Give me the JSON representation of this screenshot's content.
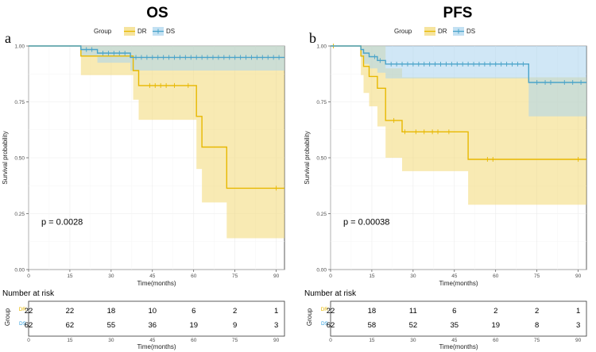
{
  "colors": {
    "dr": "#e7b800",
    "ds": "#2e9fdf",
    "ds_line": "#4aa3c9",
    "dr_band": "#f2d875",
    "ds_band": "#a9d4ee",
    "grid": "#ebebeb"
  },
  "chart_data": [
    {
      "type": "line",
      "subtype": "kaplan-meier",
      "title": "OS",
      "panel_label": "a",
      "legend_title": "Group",
      "legend_position": "top",
      "xlabel": "Time(months)",
      "ylabel": "Survival probability",
      "xlim": [
        0,
        93
      ],
      "ylim": [
        0,
        1
      ],
      "x_ticks": [
        0,
        15,
        30,
        45,
        60,
        75,
        90
      ],
      "y_ticks": [
        0,
        0.25,
        0.5,
        0.75,
        1.0
      ],
      "y_tick_labels": [
        "0.00",
        "0.25",
        "0.50",
        "0.75",
        "1.00"
      ],
      "p_value": "p = 0.0028",
      "series": [
        {
          "name": "DR",
          "steps": [
            [
              0,
              1.0
            ],
            [
              19,
              0.955
            ],
            [
              38,
              0.89
            ],
            [
              40,
              0.823
            ],
            [
              61,
              0.685
            ],
            [
              63,
              0.548
            ],
            [
              72,
              0.364
            ],
            [
              93,
              0.364
            ]
          ],
          "ci_lower": [
            [
              0,
              1.0
            ],
            [
              19,
              0.87
            ],
            [
              38,
              0.76
            ],
            [
              40,
              0.67
            ],
            [
              61,
              0.45
            ],
            [
              63,
              0.3
            ],
            [
              72,
              0.14
            ],
            [
              93,
              0.14
            ]
          ],
          "ci_upper": [
            [
              0,
              1.0
            ],
            [
              19,
              1.0
            ],
            [
              38,
              1.0
            ],
            [
              40,
              1.0
            ],
            [
              61,
              1.0
            ],
            [
              63,
              1.0
            ],
            [
              72,
              1.0
            ],
            [
              93,
              1.0
            ]
          ],
          "censor_times": [
            44,
            46,
            48,
            50,
            53,
            58,
            90
          ]
        },
        {
          "name": "DS",
          "steps": [
            [
              0,
              1.0
            ],
            [
              19,
              0.984
            ],
            [
              25,
              0.968
            ],
            [
              37,
              0.949
            ],
            [
              93,
              0.949
            ]
          ],
          "ci_lower": [
            [
              0,
              1.0
            ],
            [
              19,
              0.955
            ],
            [
              25,
              0.925
            ],
            [
              37,
              0.89
            ],
            [
              93,
              0.89
            ]
          ],
          "ci_upper": [
            [
              0,
              1.0
            ],
            [
              19,
              1.0
            ],
            [
              25,
              1.0
            ],
            [
              37,
              1.0
            ],
            [
              93,
              1.0
            ]
          ],
          "censor_times": [
            21,
            23,
            27,
            29,
            31,
            33,
            35,
            39,
            41,
            43,
            45,
            47,
            49,
            51,
            53,
            55,
            57,
            59,
            61,
            63,
            65,
            67,
            69,
            71,
            73,
            75,
            77,
            79,
            81,
            83,
            85,
            87,
            89,
            91
          ]
        }
      ],
      "risk_table": {
        "title": "Number at risk",
        "xlabel": "Time(months)",
        "y_title": "Group",
        "rows": [
          {
            "name": "DR",
            "counts": [
              22,
              22,
              18,
              10,
              6,
              2,
              1
            ]
          },
          {
            "name": "DS",
            "counts": [
              62,
              62,
              55,
              36,
              19,
              9,
              3
            ]
          }
        ]
      }
    },
    {
      "type": "line",
      "subtype": "kaplan-meier",
      "title": "PFS",
      "panel_label": "b",
      "legend_title": "Group",
      "legend_position": "top",
      "xlabel": "Time(months)",
      "ylabel": "Survival probability",
      "xlim": [
        0,
        93
      ],
      "ylim": [
        0,
        1
      ],
      "x_ticks": [
        0,
        15,
        30,
        45,
        60,
        75,
        90
      ],
      "y_ticks": [
        0,
        0.25,
        0.5,
        0.75,
        1.0
      ],
      "y_tick_labels": [
        "0.00",
        "0.25",
        "0.50",
        "0.75",
        "1.00"
      ],
      "p_value": "p = 0.00038",
      "series": [
        {
          "name": "DR",
          "steps": [
            [
              0,
              1.0
            ],
            [
              11,
              0.955
            ],
            [
              12,
              0.909
            ],
            [
              14,
              0.864
            ],
            [
              17,
              0.811
            ],
            [
              20,
              0.667
            ],
            [
              26,
              0.616
            ],
            [
              50,
              0.493
            ],
            [
              93,
              0.493
            ]
          ],
          "ci_lower": [
            [
              0,
              1.0
            ],
            [
              11,
              0.87
            ],
            [
              12,
              0.79
            ],
            [
              14,
              0.73
            ],
            [
              17,
              0.64
            ],
            [
              20,
              0.5
            ],
            [
              26,
              0.44
            ],
            [
              50,
              0.29
            ],
            [
              93,
              0.29
            ]
          ],
          "ci_upper": [
            [
              0,
              1.0
            ],
            [
              11,
              1.0
            ],
            [
              12,
              1.0
            ],
            [
              14,
              1.0
            ],
            [
              17,
              1.0
            ],
            [
              20,
              0.9
            ],
            [
              26,
              0.86
            ],
            [
              50,
              0.86
            ],
            [
              93,
              0.86
            ]
          ],
          "censor_times": [
            1,
            23,
            27,
            31,
            34,
            37,
            39,
            43,
            57,
            59,
            90
          ]
        },
        {
          "name": "DS",
          "steps": [
            [
              0,
              1.0
            ],
            [
              11,
              0.984
            ],
            [
              12,
              0.968
            ],
            [
              14,
              0.952
            ],
            [
              17,
              0.935
            ],
            [
              20,
              0.919
            ],
            [
              72,
              0.837
            ],
            [
              93,
              0.837
            ]
          ],
          "ci_lower": [
            [
              0,
              1.0
            ],
            [
              11,
              0.95
            ],
            [
              12,
              0.92
            ],
            [
              14,
              0.9
            ],
            [
              17,
              0.88
            ],
            [
              20,
              0.855
            ],
            [
              72,
              0.685
            ],
            [
              93,
              0.685
            ]
          ],
          "ci_upper": [
            [
              0,
              1.0
            ],
            [
              11,
              1.0
            ],
            [
              12,
              1.0
            ],
            [
              14,
              1.0
            ],
            [
              17,
              1.0
            ],
            [
              20,
              1.0
            ],
            [
              72,
              1.0
            ],
            [
              93,
              1.0
            ]
          ],
          "censor_times": [
            16,
            18,
            22,
            24,
            26,
            28,
            30,
            32,
            34,
            36,
            38,
            40,
            42,
            44,
            46,
            48,
            50,
            52,
            54,
            56,
            58,
            60,
            62,
            64,
            66,
            68,
            70,
            75,
            78,
            80,
            85,
            88,
            91
          ]
        }
      ],
      "risk_table": {
        "title": "Number at risk",
        "xlabel": "Time(months)",
        "y_title": "Group",
        "rows": [
          {
            "name": "DR",
            "counts": [
              22,
              18,
              11,
              6,
              2,
              2,
              1
            ]
          },
          {
            "name": "DS",
            "counts": [
              62,
              58,
              52,
              35,
              19,
              8,
              3
            ]
          }
        ]
      }
    }
  ]
}
